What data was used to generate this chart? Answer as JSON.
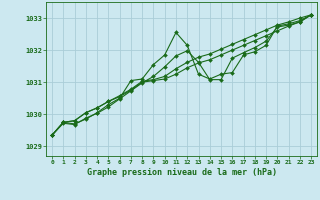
{
  "background_color": "#cce8f0",
  "plot_bg_color": "#cce8f0",
  "line_color": "#1a6b1a",
  "marker_color": "#1a6b1a",
  "grid_color": "#aacdd8",
  "xlabel": "Graphe pression niveau de la mer (hPa)",
  "xlabel_color": "#1a6b1a",
  "xlim": [
    -0.5,
    23.5
  ],
  "ylim": [
    1028.7,
    1033.5
  ],
  "yticks": [
    1029,
    1030,
    1031,
    1032,
    1033
  ],
  "xticks": [
    0,
    1,
    2,
    3,
    4,
    5,
    6,
    7,
    8,
    9,
    10,
    11,
    12,
    13,
    14,
    15,
    16,
    17,
    18,
    19,
    20,
    21,
    22,
    23
  ],
  "series1_x": [
    0,
    1,
    2,
    3,
    4,
    5,
    6,
    7,
    8,
    9,
    10,
    11,
    12,
    13,
    14,
    15,
    16,
    17,
    18,
    19,
    20,
    21,
    22,
    23
  ],
  "series1_y": [
    1029.35,
    1029.75,
    1029.8,
    1030.05,
    1030.2,
    1030.4,
    1030.55,
    1030.75,
    1031.0,
    1031.05,
    1031.1,
    1031.25,
    1031.45,
    1031.6,
    1031.7,
    1031.85,
    1032.0,
    1032.15,
    1032.3,
    1032.45,
    1032.6,
    1032.75,
    1032.88,
    1033.1
  ],
  "series2_x": [
    0,
    1,
    2,
    3,
    4,
    5,
    6,
    7,
    8,
    9,
    10,
    11,
    12,
    13,
    14,
    15,
    16,
    17,
    18,
    19,
    20,
    21,
    22,
    23
  ],
  "series2_y": [
    1029.35,
    1029.75,
    1029.8,
    1030.05,
    1030.2,
    1030.4,
    1030.58,
    1030.78,
    1031.03,
    1031.08,
    1031.18,
    1031.42,
    1031.62,
    1031.78,
    1031.88,
    1032.03,
    1032.18,
    1032.33,
    1032.48,
    1032.63,
    1032.78,
    1032.88,
    1033.0,
    1033.1
  ],
  "series3_x": [
    0,
    1,
    2,
    3,
    4,
    5,
    6,
    7,
    8,
    9,
    10,
    11,
    12,
    13,
    14,
    15,
    16,
    17,
    18,
    19,
    20,
    21,
    22,
    23
  ],
  "series3_y": [
    1029.35,
    1029.75,
    1029.7,
    1029.85,
    1030.05,
    1030.3,
    1030.5,
    1031.05,
    1031.1,
    1031.55,
    1031.85,
    1032.55,
    1032.15,
    1031.25,
    1031.1,
    1031.25,
    1031.3,
    1031.85,
    1031.95,
    1032.15,
    1032.75,
    1032.82,
    1032.92,
    1033.1
  ],
  "series4_x": [
    0,
    1,
    2,
    3,
    4,
    5,
    6,
    7,
    8,
    9,
    10,
    11,
    12,
    13,
    14,
    15,
    16,
    17,
    18,
    19,
    20,
    21,
    22,
    23
  ],
  "series4_y": [
    1029.35,
    1029.72,
    1029.68,
    1029.88,
    1030.03,
    1030.23,
    1030.48,
    1030.73,
    1030.98,
    1031.18,
    1031.48,
    1031.82,
    1031.98,
    1031.62,
    1031.08,
    1031.08,
    1031.75,
    1031.92,
    1032.08,
    1032.28,
    1032.72,
    1032.78,
    1032.88,
    1033.1
  ]
}
